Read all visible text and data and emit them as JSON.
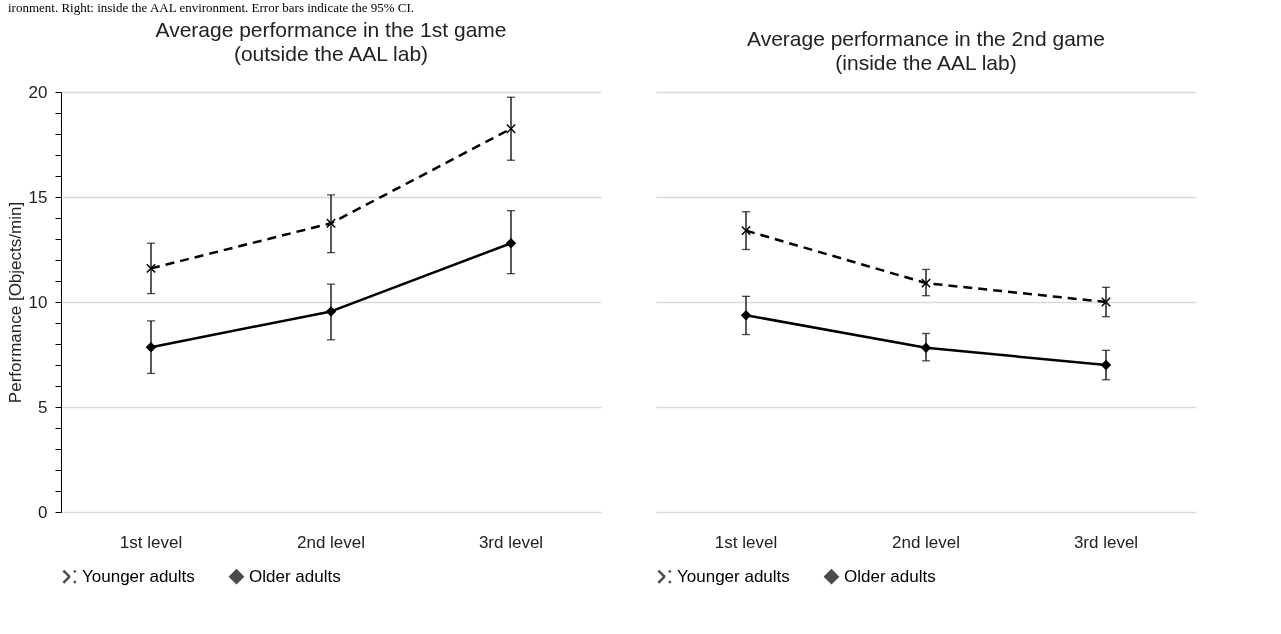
{
  "chart_data": [
    {
      "type": "line",
      "title": "Average performance in the 1st game",
      "subtitle": "(outside the AAL lab)",
      "ylabel": "Performance [Objects/min]",
      "annotations": [
        "ironment. Right: inside the AAL environment. Error bars indicate the 95% CI."
      ],
      "categories": [
        "1st level",
        "2nd level",
        "3rd level"
      ],
      "series": [
        {
          "name": "Younger adults",
          "color": "#000000",
          "line_style": "dashed",
          "marker": "cross",
          "values": [
            11.6,
            13.75,
            18.25
          ],
          "errors": [
            [
              10.4,
              12.8
            ],
            [
              12.35,
              15.1
            ],
            [
              16.75,
              19.75
            ]
          ]
        },
        {
          "name": "Older adults",
          "color": "#000000",
          "line_style": "solid",
          "marker": "diamond",
          "values": [
            7.85,
            9.55,
            12.8
          ],
          "errors": [
            [
              6.6,
              9.1
            ],
            [
              8.2,
              10.85
            ],
            [
              11.35,
              14.35
            ]
          ]
        }
      ],
      "ylim": [
        0,
        20
      ],
      "yticks": [
        0,
        {
          "value": 1,
          "label": null
        },
        {
          "value": 2,
          "label": null
        },
        {
          "value": 3,
          "label": null
        },
        {
          "value": 4,
          "label": null
        },
        5,
        {
          "value": 6,
          "label": null
        },
        {
          "value": 7,
          "label": null
        },
        {
          "value": 8,
          "label": null
        },
        {
          "value": 9,
          "label": null
        },
        10,
        {
          "value": 11,
          "label": null
        },
        {
          "value": 12,
          "label": null
        },
        {
          "value": 13,
          "label": null
        },
        {
          "value": 14,
          "label": null
        },
        15,
        {
          "value": 16,
          "label": null
        },
        {
          "value": 17,
          "label": null
        },
        {
          "value": 18,
          "label": null
        },
        {
          "value": 19,
          "label": null
        },
        20
      ],
      "grid": "y",
      "legend": "bottom"
    },
    {
      "type": "line",
      "title": "Average performance in the 2nd game",
      "subtitle": "(inside the AAL lab)",
      "categories": [
        "1st level",
        "2nd level",
        "3rd level"
      ],
      "series": [
        {
          "name": "Younger adults",
          "color": "#000000",
          "line_style": "dashed",
          "marker": "cross",
          "values": [
            13.4,
            10.9,
            10.0
          ],
          "errors": [
            [
              12.5,
              14.3
            ],
            [
              10.3,
              11.55
            ],
            [
              9.3,
              10.7
            ]
          ]
        },
        {
          "name": "Older adults",
          "color": "#000000",
          "line_style": "solid",
          "marker": "diamond",
          "values": [
            9.37,
            7.82,
            7.0
          ],
          "errors": [
            [
              8.45,
              10.27
            ],
            [
              7.2,
              8.5
            ],
            [
              6.3,
              7.7
            ]
          ]
        }
      ],
      "ylim": [
        0,
        20
      ],
      "yticks": [
        0,
        5,
        10,
        15,
        20
      ],
      "grid": "y",
      "legend": "bottom",
      "tick_labels": "x"
    }
  ]
}
